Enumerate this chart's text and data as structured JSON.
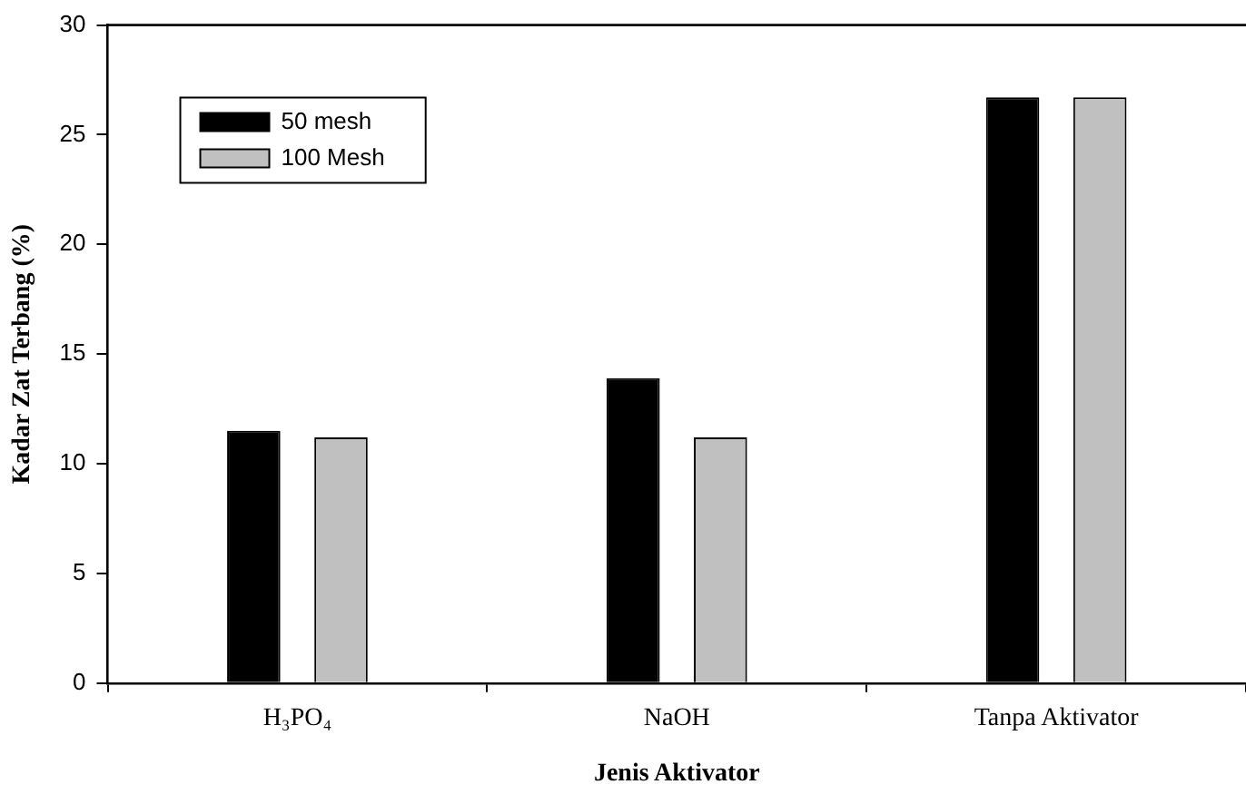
{
  "chart_data": {
    "type": "bar",
    "xlabel": "Jenis Aktivator",
    "ylabel": "Kadar Zat Terbang (%)",
    "categories": [
      "H₃PO₄",
      "NaOH",
      "Tanpa Aktivator"
    ],
    "series": [
      {
        "name": "50 mesh",
        "color": "#000000",
        "values": [
          11.5,
          13.9,
          26.7
        ]
      },
      {
        "name": "100 Mesh",
        "color": "#c0c0c0",
        "values": [
          11.2,
          11.2,
          26.7
        ]
      }
    ],
    "ylim": [
      0,
      30
    ],
    "yticks": [
      0,
      5,
      10,
      15,
      20,
      25,
      30
    ],
    "grid": false,
    "legend": "top left"
  }
}
